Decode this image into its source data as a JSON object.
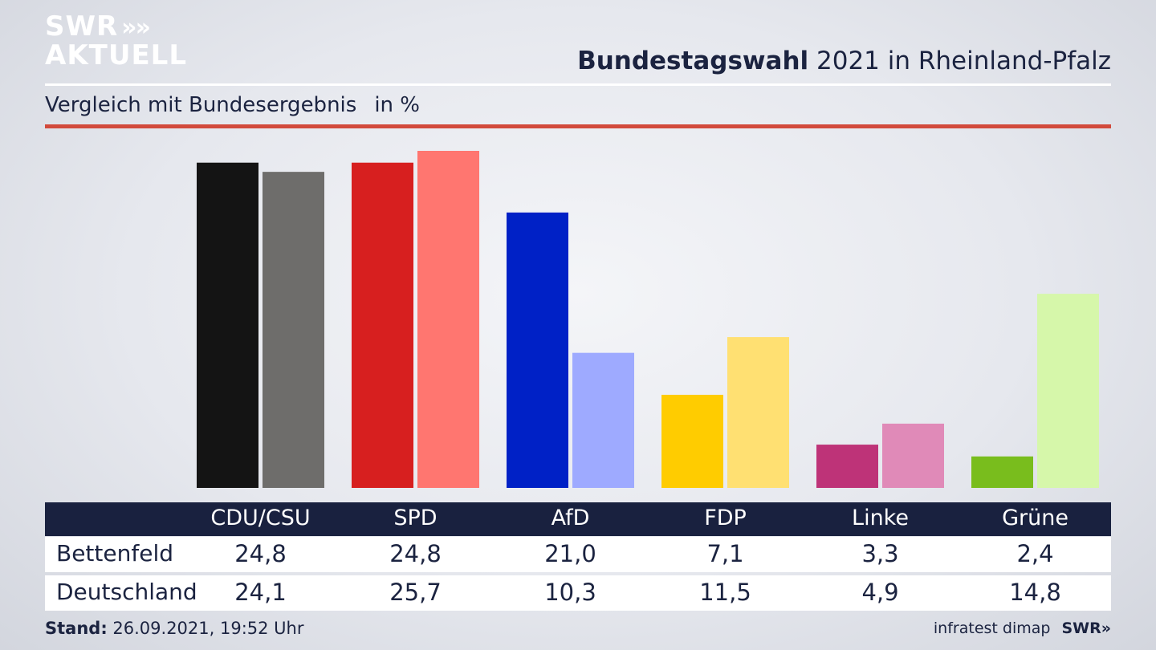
{
  "branding": {
    "logo_line1": "SWR",
    "logo_chevrons": "»",
    "logo_line2": "AKTUELL",
    "footer_logo": "SWR»"
  },
  "header": {
    "title_bold": "Bundestagswahl",
    "title_rest": " 2021 in Rheinland-Pfalz",
    "subtitle": "Vergleich mit Bundesergebnis",
    "unit": "in %"
  },
  "colors": {
    "navy": "#19213f",
    "accent_red": "#d24a3c"
  },
  "chart_data": {
    "type": "bar",
    "categories": [
      "CDU/CSU",
      "SPD",
      "AfD",
      "FDP",
      "Linke",
      "Grüne"
    ],
    "series": [
      {
        "name": "Bettenfeld",
        "values": [
          24.8,
          24.8,
          21.0,
          7.1,
          3.3,
          2.4
        ],
        "labels": [
          "24,8",
          "24,8",
          "21,0",
          "7,1",
          "3,3",
          "2,4"
        ],
        "colors": [
          "#141414",
          "#d71f1f",
          "#0021c6",
          "#ffcc00",
          "#be3378",
          "#79bd1d"
        ]
      },
      {
        "name": "Deutschland",
        "values": [
          24.1,
          25.7,
          10.3,
          11.5,
          4.9,
          14.8
        ],
        "labels": [
          "24,1",
          "25,7",
          "10,3",
          "11,5",
          "4,9",
          "14,8"
        ],
        "colors": [
          "#6e6d6b",
          "#ff7670",
          "#9eaaff",
          "#ffe072",
          "#e08ab8",
          "#d6f7aa"
        ]
      }
    ],
    "ylim": [
      0,
      25.7
    ],
    "grid": false
  },
  "footer": {
    "stand_label": "Stand:",
    "stand_value": " 26.09.2021, 19:52 Uhr",
    "source": "infratest dimap"
  }
}
